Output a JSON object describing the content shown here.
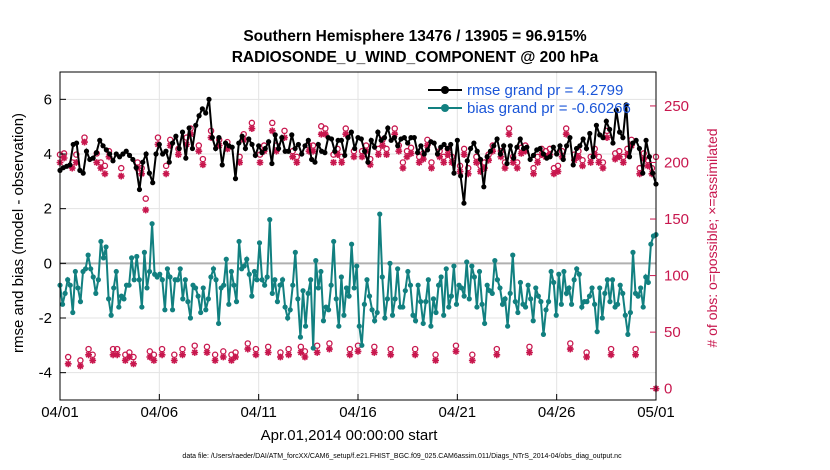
{
  "chart_data": {
    "type": "line",
    "title_line1": "Southern Hemisphere 13476 / 13905 = 96.915%",
    "title_line2": "RADIOSONDE_U_WIND_COMPONENT @ 200 hPa",
    "xlabel": "Apr.01,2014 00:00:00 start",
    "ylabel_left": "rmse and bias (model - observation)",
    "ylabel_right": "# of obs: o=possible; ×=assimilated",
    "xlim": [
      0,
      30
    ],
    "ylim_left": [
      -5,
      7
    ],
    "ylim_right": [
      -10,
      280
    ],
    "x_ticks": [
      {
        "x": 0,
        "label": "04/01"
      },
      {
        "x": 5,
        "label": "04/06"
      },
      {
        "x": 10,
        "label": "04/11"
      },
      {
        "x": 15,
        "label": "04/16"
      },
      {
        "x": 20,
        "label": "04/21"
      },
      {
        "x": 25,
        "label": "04/26"
      },
      {
        "x": 30,
        "label": "05/01"
      }
    ],
    "y_ticks_left": [
      -4,
      -2,
      0,
      2,
      4,
      6
    ],
    "y_ticks_right": [
      0,
      50,
      100,
      150,
      200,
      250
    ],
    "footnote": "data file: /Users/raeder/DAI/ATM_forcXX/CAM6_setup/f.e21.FHIST_BGC.f09_025.CAM6assim.011/Diags_NTrS_2014-04/obs_diag_output.nc",
    "legend": [
      {
        "label": "rmse grand pr = 4.2799",
        "color": "#000000"
      },
      {
        "label": "bias grand pr = -0.60266",
        "color": "#128080"
      }
    ],
    "colors": {
      "rmse": "#000000",
      "bias": "#128080",
      "obs": "#c8174e",
      "zero_line": "#b0b0b0",
      "grid": "#e3e3e3"
    },
    "series": [
      {
        "name": "rmse",
        "axis": "left",
        "values": [
          3.4,
          3.5,
          3.55,
          3.6,
          4.35,
          4.4,
          3.4,
          3.3,
          4.1,
          3.8,
          3.85,
          4.05,
          4.5,
          4.3,
          4.15,
          4.0,
          3.75,
          4.0,
          3.9,
          4.0,
          4.1,
          3.95,
          3.8,
          3.5,
          2.7,
          3.7,
          4.0,
          3.3,
          2.95,
          4.0,
          4.35,
          4.0,
          4.1,
          3.7,
          4.4,
          4.65,
          4.2,
          4.8,
          3.85,
          4.95,
          4.2,
          5.05,
          5.4,
          5.65,
          5.5,
          6.0,
          4.6,
          4.2,
          4.6,
          3.6,
          4.4,
          4.3,
          4.25,
          3.1,
          4.4,
          4.65,
          4.2,
          4.55,
          4.35,
          3.95,
          4.3,
          4.05,
          4.2,
          4.45,
          3.65,
          4.7,
          4.2,
          4.6,
          4.1,
          4.1,
          4.7,
          4.2,
          4.35,
          4.0,
          4.3,
          4.5,
          3.8,
          3.7,
          4.35,
          4.1,
          4.05,
          4.6,
          4.55,
          4.1,
          4.5,
          4.5,
          3.95,
          4.6,
          4.8,
          4.2,
          4.6,
          4.55,
          4.1,
          3.7,
          4.5,
          4.25,
          4.8,
          4.5,
          4.6,
          4.95,
          4.5,
          4.6,
          4.3,
          4.55,
          4.6,
          4.4,
          4.6,
          4.6,
          4.05,
          4.3,
          4.0,
          4.15,
          4.45,
          4.4,
          4.0,
          4.25,
          4.35,
          4.2,
          4.35,
          3.3,
          4.5,
          3.2,
          2.2,
          3.75,
          4.2,
          4.4,
          4.1,
          3.8,
          2.8,
          3.9,
          4.1,
          4.3,
          4.55,
          4.0,
          4.3,
          3.65,
          4.3,
          3.85,
          4.25,
          4.55,
          4.2,
          4.25,
          3.8,
          3.95,
          4.15,
          4.2,
          4.0,
          3.85,
          3.9,
          4.25,
          4.0,
          4.3,
          3.8,
          4.3,
          4.6,
          3.6,
          4.2,
          4.3,
          4.55,
          4.2,
          4.75,
          3.9,
          5.05,
          4.7,
          4.6,
          5.2,
          4.9,
          4.4,
          5.6,
          4.8,
          4.6,
          5.8,
          3.9,
          4.4,
          4.5,
          4.2,
          3.3,
          4.5,
          3.9,
          3.3,
          2.9
        ]
      },
      {
        "name": "bias",
        "axis": "left",
        "values": [
          -0.8,
          -1.5,
          -1.1,
          -0.6,
          -0.8,
          -1.8,
          -0.3,
          -0.9,
          -1.4,
          -0.3,
          -0.2,
          0.3,
          -0.2,
          -0.5,
          -1.1,
          -0.6,
          0.8,
          0.2,
          0.6,
          -1.3,
          -1.9,
          -0.9,
          -0.3,
          -1.6,
          -1.2,
          -1.3,
          -0.8,
          -0.8,
          0.2,
          -0.6,
          0.25,
          -0.6,
          -1.6,
          0.4,
          -0.9,
          -0.3,
          1.45,
          -0.4,
          -0.5,
          -0.4,
          -0.6,
          -1.7,
          -0.2,
          -0.5,
          -1.7,
          -0.6,
          -0.6,
          -0.2,
          -1.3,
          -0.6,
          -1.4,
          -2.0,
          -0.8,
          -0.9,
          -1.2,
          -1.8,
          -0.9,
          -1.7,
          -1.3,
          -0.5,
          -0.2,
          -0.6,
          -2.2,
          -0.9,
          -0.8,
          0.15,
          -1.5,
          -0.3,
          -0.8,
          -1.4,
          0.8,
          -0.2,
          -0.1,
          0.15,
          -0.4,
          -1.2,
          -0.3,
          -0.6,
          0.75,
          -0.6,
          -0.8,
          -0.5,
          1.6,
          -1.1,
          -0.6,
          -1.4,
          -0.8,
          -0.6,
          -1.6,
          -2.0,
          -1.7,
          -0.8,
          0.4,
          -1.3,
          -2.7,
          -1.0,
          -2.3,
          -1.1,
          -0.6,
          -3.1,
          0.1,
          -0.9,
          -0.3,
          -2.1,
          -1.6,
          -1.7,
          -0.8,
          0.8,
          -1.3,
          -2.3,
          -0.5,
          -1.9,
          -0.9,
          -1.2,
          0.7,
          -0.9,
          -0.1,
          -2.3,
          -3.0,
          -1.5,
          -0.6,
          -1.2,
          -1.7,
          -2.1,
          -1.8,
          1.8,
          -0.5,
          -2.0,
          -1.3,
          0.0,
          -1.9,
          -1.3,
          -0.2,
          -1.6,
          -1.6,
          -1.0,
          -0.3,
          -0.8,
          -1.9,
          -2.1,
          -0.8,
          -1.4,
          -2.2,
          -1.4,
          -0.6,
          -2.3,
          -1.3,
          -1.8,
          -0.8,
          -0.5,
          -1.9,
          -0.2,
          -1.6,
          -1.2,
          -0.1,
          -1.5,
          -0.8,
          -0.9,
          -1.2,
          0.05,
          -1.3,
          -0.1,
          -0.5,
          -1.6,
          -0.3,
          -1.5,
          -2.2,
          -0.8,
          -1.0,
          -1.1,
          0.1,
          -0.6,
          -0.9,
          -1.5,
          -1.3,
          -2.3,
          -1.1,
          0.3,
          -1.4,
          -1.8,
          -0.7,
          -1.5,
          -1.6,
          -0.8,
          -1.3,
          -2.1,
          -0.9,
          -1.2,
          -1.4,
          -2.6,
          -1.7,
          -1.4,
          -0.3,
          -0.7,
          -1.9,
          -0.4,
          -1.5,
          -0.3,
          -1.1,
          -0.9,
          -1.5,
          -0.6,
          -0.2,
          -0.4,
          -1.6,
          -1.4,
          -1.4,
          -1.2,
          -0.9,
          -1.5,
          -2.5,
          -0.9,
          -2.0,
          -1.1,
          -0.6,
          -1.4,
          -0.6,
          -1.6,
          -1.5,
          -0.8,
          -1.1,
          -1.9,
          -2.6,
          -1.8,
          0.4,
          -1.1,
          -1.2,
          -0.9,
          -1.6,
          -0.5,
          -0.7,
          0.7,
          1.0,
          1.05
        ]
      },
      {
        "name": "obs_possible",
        "axis": "right",
        "values": [
          207,
          208,
          28,
          200,
          207,
          25,
          222,
          35,
          30,
          208,
          200,
          197,
          210,
          35,
          35,
          195,
          30,
          32,
          28,
          200,
          195,
          168,
          33,
          30,
          222,
          35,
          197,
          220,
          30,
          212,
          35,
          222,
          230,
          38,
          215,
          203,
          37,
          228,
          30,
          220,
          33,
          218,
          30,
          32,
          205,
          225,
          40,
          235,
          35,
          207,
          215,
          37,
          235,
          215,
          32,
          228,
          35,
          210,
          205,
          37,
          33,
          215,
          215,
          38,
          232,
          230,
          40,
          207,
          212,
          205,
          230,
          35,
          210,
          38,
          210,
          215,
          203,
          37,
          212,
          220,
          212,
          35,
          230,
          215,
          200,
          210,
          213,
          35,
          205,
          208,
          220,
          200,
          30,
          210,
          205,
          212,
          205,
          38,
          197,
          212,
          195,
          30,
          205,
          197,
          200,
          207,
          215,
          35,
          210,
          200,
          230,
          205,
          200,
          213,
          215,
          37,
          195,
          205,
          212,
          210,
          212,
          195,
          197,
          210,
          230,
          40,
          207,
          210,
          202,
          32,
          205,
          212,
          205,
          200,
          228,
          35,
          208,
          210,
          205,
          212,
          220,
          35,
          195,
          208,
          202,
          195,
          205
        ]
      },
      {
        "name": "obs_assimilated",
        "axis": "right",
        "values": [
          200,
          204,
          22,
          195,
          200,
          20,
          218,
          30,
          25,
          200,
          195,
          190,
          205,
          30,
          30,
          188,
          25,
          28,
          22,
          195,
          190,
          158,
          28,
          25,
          216,
          30,
          190,
          215,
          25,
          207,
          30,
          216,
          225,
          32,
          210,
          198,
          32,
          222,
          25,
          215,
          28,
          212,
          25,
          28,
          200,
          220,
          35,
          230,
          30,
          200,
          210,
          32,
          228,
          210,
          28,
          222,
          30,
          205,
          200,
          32,
          28,
          210,
          210,
          32,
          225,
          225,
          35,
          200,
          207,
          200,
          225,
          30,
          205,
          33,
          205,
          210,
          198,
          32,
          207,
          215,
          207,
          30,
          225,
          210,
          195,
          205,
          208,
          30,
          200,
          203,
          215,
          195,
          25,
          205,
          200,
          207,
          200,
          33,
          192,
          207,
          190,
          25,
          200,
          192,
          195,
          202,
          210,
          30,
          205,
          195,
          225,
          200,
          195,
          208,
          210,
          32,
          190,
          200,
          207,
          205,
          207,
          190,
          192,
          205,
          225,
          35,
          202,
          205,
          197,
          28,
          200,
          207,
          200,
          195,
          222,
          30,
          203,
          205,
          200,
          207,
          215,
          30,
          190,
          203,
          197,
          190,
          0
        ]
      }
    ]
  }
}
